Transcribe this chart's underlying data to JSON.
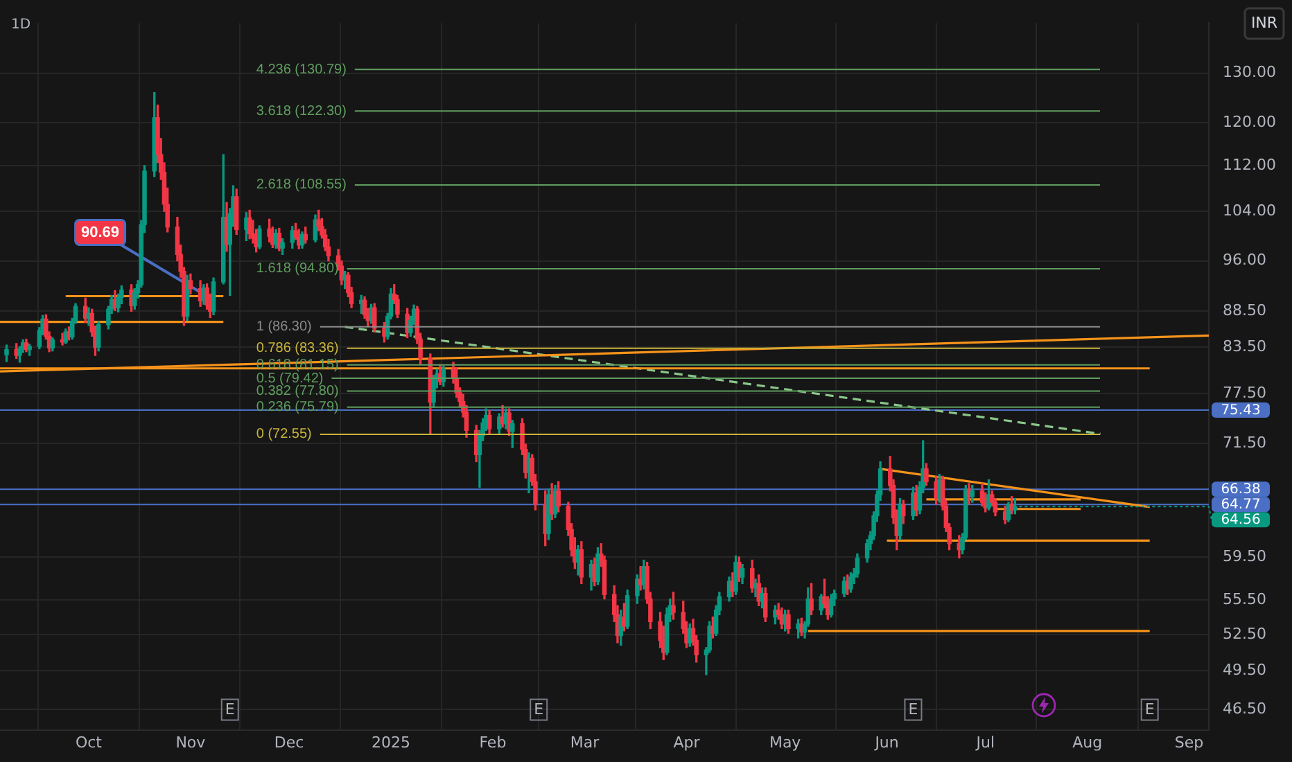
{
  "chart_data": {
    "type": "candlestick",
    "title": "1D",
    "log": "y",
    "grid": true,
    "xlim": [
      "2024-09-04",
      "2025-09-07"
    ],
    "xticks": [
      {
        "value": "2024-10-01",
        "label": "Oct"
      },
      {
        "value": "2024-11-01",
        "label": "Nov"
      },
      {
        "value": "2024-12-01",
        "label": "Dec"
      },
      {
        "value": "2025-01-01",
        "label": "2025"
      },
      {
        "value": "2025-02-01",
        "label": "Feb"
      },
      {
        "value": "2025-03-01",
        "label": "Mar"
      },
      {
        "value": "2025-04-01",
        "label": "Apr"
      },
      {
        "value": "2025-05-01",
        "label": "May"
      },
      {
        "value": "2025-06-01",
        "label": "Jun"
      },
      {
        "value": "2025-07-01",
        "label": "Jul"
      },
      {
        "value": "2025-08-01",
        "label": "Aug"
      },
      {
        "value": "2025-09-01",
        "label": "Sep"
      }
    ],
    "ylim": [
      45,
      141
    ],
    "yticks": [
      {
        "value": 130,
        "label": "130.00"
      },
      {
        "value": 120,
        "label": "120.00"
      },
      {
        "value": 112,
        "label": "112.00"
      },
      {
        "value": 104,
        "label": "104.00"
      },
      {
        "value": 96,
        "label": "96.00"
      },
      {
        "value": 88.5,
        "label": "88.50"
      },
      {
        "value": 83.5,
        "label": "83.50"
      },
      {
        "value": 77.5,
        "label": "77.50"
      },
      {
        "value": 71.5,
        "label": "71.50"
      },
      {
        "value": 59.5,
        "label": "59.50"
      },
      {
        "value": 55.5,
        "label": "55.50"
      },
      {
        "value": 52.5,
        "label": "52.50"
      },
      {
        "value": 49.5,
        "label": "49.50"
      },
      {
        "value": 46.5,
        "label": "46.50"
      }
    ],
    "x": [
      "2024-09-06",
      "2024-09-09",
      "2024-09-10",
      "2024-09-11",
      "2024-09-12",
      "2024-09-13",
      "2024-09-16",
      "2024-09-17",
      "2024-09-18",
      "2024-09-19",
      "2024-09-20",
      "2024-09-23",
      "2024-09-24",
      "2024-09-25",
      "2024-09-26",
      "2024-09-27",
      "2024-09-30",
      "2024-10-01",
      "2024-10-02",
      "2024-10-03",
      "2024-10-04",
      "2024-10-07",
      "2024-10-08",
      "2024-10-09",
      "2024-10-10",
      "2024-10-11",
      "2024-10-14",
      "2024-10-15",
      "2024-10-16",
      "2024-10-17",
      "2024-10-18",
      "2024-10-21",
      "2024-10-22",
      "2024-10-23",
      "2024-10-24",
      "2024-10-25",
      "2024-10-28",
      "2024-10-29",
      "2024-10-30",
      "2024-10-31",
      "2024-11-01",
      "2024-11-04",
      "2024-11-05",
      "2024-11-06",
      "2024-11-07",
      "2024-11-08",
      "2024-11-11",
      "2024-11-12",
      "2024-11-13",
      "2024-11-14",
      "2024-11-15",
      "2024-11-18",
      "2024-11-19",
      "2024-11-20",
      "2024-11-21",
      "2024-11-22",
      "2024-11-25",
      "2024-11-26",
      "2024-11-27",
      "2024-11-28",
      "2024-11-29",
      "2024-12-02",
      "2024-12-03",
      "2024-12-04",
      "2024-12-05",
      "2024-12-06",
      "2024-12-09",
      "2024-12-10",
      "2024-12-11",
      "2024-12-12",
      "2024-12-13",
      "2024-12-16",
      "2024-12-17",
      "2024-12-18",
      "2024-12-19",
      "2024-12-20",
      "2024-12-23",
      "2024-12-24",
      "2024-12-25",
      "2024-12-26",
      "2024-12-27",
      "2024-12-30",
      "2024-12-31",
      "2025-01-01",
      "2025-01-02",
      "2025-01-03",
      "2025-01-06",
      "2025-01-07",
      "2025-01-08",
      "2025-01-09",
      "2025-01-10",
      "2025-01-13",
      "2025-01-14",
      "2025-01-15",
      "2025-01-16",
      "2025-01-17",
      "2025-01-20",
      "2025-01-21",
      "2025-01-22",
      "2025-01-23",
      "2025-01-24",
      "2025-01-27",
      "2025-01-28",
      "2025-01-29",
      "2025-01-30",
      "2025-01-31",
      "2025-02-03",
      "2025-02-04",
      "2025-02-05",
      "2025-02-06",
      "2025-02-07",
      "2025-02-10",
      "2025-02-11",
      "2025-02-12",
      "2025-02-13",
      "2025-02-14",
      "2025-02-17",
      "2025-02-18",
      "2025-02-19",
      "2025-02-20",
      "2025-02-21",
      "2025-02-24",
      "2025-02-25",
      "2025-02-26",
      "2025-02-27",
      "2025-02-28",
      "2025-03-03",
      "2025-03-04",
      "2025-03-05",
      "2025-03-06",
      "2025-03-07",
      "2025-03-10",
      "2025-03-11",
      "2025-03-12",
      "2025-03-13",
      "2025-03-14",
      "2025-03-17",
      "2025-03-18",
      "2025-03-19",
      "2025-03-20",
      "2025-03-21",
      "2025-03-24",
      "2025-03-25",
      "2025-03-26",
      "2025-03-27",
      "2025-03-28",
      "2025-03-31",
      "2025-04-01",
      "2025-04-02",
      "2025-04-03",
      "2025-04-04",
      "2025-04-07",
      "2025-04-08",
      "2025-04-09",
      "2025-04-10",
      "2025-04-11",
      "2025-04-14",
      "2025-04-15",
      "2025-04-16",
      "2025-04-17",
      "2025-04-18",
      "2025-04-21",
      "2025-04-22",
      "2025-04-23",
      "2025-04-24",
      "2025-04-25",
      "2025-04-28",
      "2025-04-29",
      "2025-04-30",
      "2025-05-01",
      "2025-05-02",
      "2025-05-05",
      "2025-05-06",
      "2025-05-07",
      "2025-05-08",
      "2025-05-09",
      "2025-05-12",
      "2025-05-13",
      "2025-05-14",
      "2025-05-15",
      "2025-05-16",
      "2025-05-19",
      "2025-05-20",
      "2025-05-21",
      "2025-05-22",
      "2025-05-23",
      "2025-05-26",
      "2025-05-27",
      "2025-05-28",
      "2025-05-29",
      "2025-05-30",
      "2025-06-02",
      "2025-06-03",
      "2025-06-04",
      "2025-06-05",
      "2025-06-06",
      "2025-06-09",
      "2025-06-10",
      "2025-06-11",
      "2025-06-12",
      "2025-06-13",
      "2025-06-16",
      "2025-06-17",
      "2025-06-18",
      "2025-06-19",
      "2025-06-20",
      "2025-06-23",
      "2025-06-24",
      "2025-06-25",
      "2025-06-26",
      "2025-06-27",
      "2025-06-30",
      "2025-07-01",
      "2025-07-02",
      "2025-07-03",
      "2025-07-04",
      "2025-07-07",
      "2025-07-08",
      "2025-07-09",
      "2025-07-10"
    ],
    "ohlc": [
      [
        82.5,
        83.8,
        81.6,
        83.2
      ],
      [
        83.2,
        84.0,
        82.0,
        82.4
      ],
      [
        82.4,
        83.6,
        81.5,
        83.3
      ],
      [
        83.3,
        84.5,
        82.8,
        84.1
      ],
      [
        84.1,
        84.6,
        82.9,
        83.2
      ],
      [
        83.2,
        83.9,
        82.4,
        83.6
      ],
      [
        83.6,
        86.2,
        83.3,
        85.8
      ],
      [
        85.8,
        87.9,
        85.2,
        87.4
      ],
      [
        87.4,
        88.0,
        84.6,
        85.0
      ],
      [
        85.0,
        85.6,
        82.9,
        83.4
      ],
      [
        83.4,
        84.8,
        83.0,
        84.5
      ],
      [
        84.5,
        85.4,
        83.8,
        84.2
      ],
      [
        84.2,
        86.0,
        84.0,
        85.6
      ],
      [
        85.6,
        86.3,
        84.5,
        84.9
      ],
      [
        84.9,
        87.5,
        84.6,
        87.1
      ],
      [
        87.1,
        89.6,
        86.8,
        89.2
      ],
      [
        89.2,
        90.4,
        86.9,
        87.5
      ],
      [
        87.5,
        89.0,
        86.5,
        88.2
      ],
      [
        88.2,
        88.8,
        85.0,
        85.6
      ],
      [
        85.6,
        86.4,
        82.4,
        83.5
      ],
      [
        83.5,
        87.0,
        83.0,
        86.6
      ],
      [
        86.6,
        89.2,
        86.0,
        88.8
      ],
      [
        88.8,
        90.8,
        88.2,
        90.2
      ],
      [
        90.2,
        91.5,
        88.6,
        89.0
      ],
      [
        89.0,
        91.0,
        88.4,
        90.5
      ],
      [
        90.5,
        92.2,
        89.6,
        91.6
      ],
      [
        91.6,
        92.4,
        88.5,
        89.3
      ],
      [
        89.3,
        91.8,
        88.8,
        91.2
      ],
      [
        91.2,
        93.0,
        90.4,
        92.4
      ],
      [
        92.4,
        102.5,
        92.0,
        101.8
      ],
      [
        101.8,
        112.0,
        100.5,
        111.0
      ],
      [
        111.0,
        126.0,
        110.0,
        121.0
      ],
      [
        121.0,
        123.5,
        112.5,
        114.0
      ],
      [
        114.0,
        117.0,
        109.5,
        110.8
      ],
      [
        110.8,
        112.5,
        104.0,
        105.2
      ],
      [
        105.2,
        108.0,
        100.6,
        101.4
      ],
      [
        101.4,
        103.0,
        96.0,
        97.0
      ],
      [
        97.0,
        98.5,
        93.5,
        94.4
      ],
      [
        94.4,
        95.0,
        86.5,
        87.8
      ],
      [
        87.8,
        93.8,
        87.2,
        93.0
      ],
      [
        93.0,
        94.0,
        91.0,
        91.8
      ],
      [
        91.8,
        93.0,
        89.2,
        90.0
      ],
      [
        90.0,
        92.4,
        89.5,
        91.9
      ],
      [
        91.9,
        92.5,
        88.8,
        89.4
      ],
      [
        89.4,
        91.0,
        87.6,
        88.5
      ],
      [
        88.5,
        93.4,
        88.0,
        92.8
      ],
      [
        92.8,
        114.0,
        92.5,
        103.0
      ],
      [
        103.0,
        105.5,
        97.5,
        98.6
      ],
      [
        98.6,
        104.5,
        90.8,
        103.6
      ],
      [
        103.6,
        108.4,
        101.5,
        106.5
      ],
      [
        106.5,
        107.8,
        100.2,
        101.0
      ],
      [
        101.0,
        103.8,
        99.2,
        102.9
      ],
      [
        102.9,
        104.2,
        99.5,
        100.3
      ],
      [
        100.3,
        102.5,
        98.8,
        99.6
      ],
      [
        99.6,
        101.0,
        97.4,
        98.2
      ],
      [
        98.2,
        101.6,
        97.9,
        101.1
      ],
      [
        101.1,
        102.7,
        99.0,
        99.9
      ],
      [
        99.9,
        101.4,
        98.1,
        98.6
      ],
      [
        98.6,
        101.0,
        98.0,
        100.4
      ],
      [
        100.4,
        101.2,
        97.6,
        98.0
      ],
      [
        98.0,
        99.5,
        97.0,
        98.9
      ],
      [
        98.9,
        101.5,
        98.0,
        100.8
      ],
      [
        100.8,
        102.0,
        99.4,
        99.8
      ],
      [
        99.8,
        101.0,
        97.9,
        98.5
      ],
      [
        98.5,
        100.6,
        98.0,
        100.2
      ],
      [
        100.2,
        101.4,
        98.8,
        99.3
      ],
      [
        99.3,
        103.4,
        99.0,
        102.6
      ],
      [
        102.6,
        104.2,
        100.8,
        101.5
      ],
      [
        101.5,
        102.8,
        99.6,
        100.1
      ],
      [
        100.1,
        101.0,
        97.6,
        98.2
      ],
      [
        98.2,
        99.4,
        96.0,
        96.8
      ],
      [
        96.8,
        97.8,
        94.6,
        95.2
      ],
      [
        95.2,
        96.0,
        92.4,
        93.1
      ],
      [
        93.1,
        94.4,
        91.8,
        93.8
      ],
      [
        93.8,
        94.2,
        90.6,
        91.2
      ],
      [
        91.2,
        92.0,
        89.0,
        89.6
      ],
      [
        89.6,
        90.8,
        88.2,
        90.1
      ],
      [
        90.1,
        90.6,
        87.5,
        88.0
      ],
      [
        88.0,
        88.9,
        86.4,
        87.2
      ],
      [
        87.2,
        89.5,
        86.8,
        89.0
      ],
      [
        89.0,
        89.6,
        85.6,
        86.1
      ],
      [
        86.1,
        86.9,
        84.2,
        85.0
      ],
      [
        85.0,
        88.2,
        84.6,
        87.8
      ],
      [
        87.8,
        91.8,
        87.4,
        91.0
      ],
      [
        91.0,
        92.4,
        89.6,
        90.2
      ],
      [
        90.2,
        90.8,
        87.6,
        88.1
      ],
      [
        88.1,
        88.9,
        84.8,
        85.5
      ],
      [
        85.5,
        87.8,
        85.0,
        87.2
      ],
      [
        87.2,
        89.4,
        86.6,
        88.8
      ],
      [
        88.8,
        89.2,
        84.0,
        84.6
      ],
      [
        84.6,
        85.4,
        81.2,
        82.0
      ],
      [
        82.0,
        82.6,
        72.6,
        76.4
      ],
      [
        76.4,
        79.8,
        75.8,
        79.2
      ],
      [
        79.2,
        80.6,
        78.2,
        80.0
      ],
      [
        80.0,
        81.2,
        78.6,
        79.0
      ],
      [
        79.0,
        81.0,
        78.4,
        80.6
      ],
      [
        80.6,
        81.5,
        78.8,
        79.4
      ],
      [
        79.4,
        80.8,
        77.0,
        77.6
      ],
      [
        77.6,
        78.2,
        75.8,
        76.5
      ],
      [
        76.5,
        77.4,
        74.6,
        75.2
      ],
      [
        75.2,
        76.0,
        72.2,
        73.0
      ],
      [
        73.0,
        73.6,
        69.4,
        70.2
      ],
      [
        70.2,
        73.0,
        66.6,
        72.4
      ],
      [
        72.4,
        74.4,
        71.8,
        73.9
      ],
      [
        73.9,
        75.6,
        73.0,
        74.8
      ],
      [
        74.8,
        75.4,
        72.6,
        73.2
      ],
      [
        73.2,
        75.0,
        72.6,
        74.6
      ],
      [
        74.6,
        76.0,
        73.4,
        73.8
      ],
      [
        73.8,
        75.6,
        73.2,
        75.1
      ],
      [
        75.1,
        75.6,
        72.4,
        72.9
      ],
      [
        72.9,
        74.2,
        71.0,
        73.8
      ],
      [
        73.8,
        74.4,
        70.2,
        70.8
      ],
      [
        70.8,
        71.4,
        67.6,
        68.2
      ],
      [
        68.2,
        70.4,
        66.0,
        69.8
      ],
      [
        69.8,
        70.2,
        66.8,
        67.2
      ],
      [
        67.2,
        68.0,
        64.2,
        64.8
      ],
      [
        64.8,
        66.2,
        60.6,
        61.8
      ],
      [
        61.8,
        66.4,
        61.2,
        65.8
      ],
      [
        65.8,
        67.0,
        63.2,
        63.8
      ],
      [
        63.8,
        66.8,
        63.4,
        66.2
      ],
      [
        66.2,
        67.2,
        64.0,
        64.6
      ],
      [
        64.6,
        65.0,
        61.6,
        62.2
      ],
      [
        62.2,
        62.8,
        59.6,
        60.2
      ],
      [
        60.2,
        61.4,
        58.4,
        59.0
      ],
      [
        59.0,
        60.6,
        57.8,
        60.2
      ],
      [
        60.2,
        61.0,
        57.0,
        57.6
      ],
      [
        57.6,
        59.2,
        56.4,
        58.8
      ],
      [
        58.8,
        59.4,
        56.8,
        57.2
      ],
      [
        57.2,
        60.4,
        56.9,
        59.8
      ],
      [
        59.8,
        60.8,
        58.6,
        59.2
      ],
      [
        59.2,
        59.6,
        55.6,
        56.0
      ],
      [
        56.0,
        56.8,
        53.6,
        54.2
      ],
      [
        54.2,
        55.0,
        51.8,
        52.4
      ],
      [
        52.4,
        54.6,
        51.6,
        54.0
      ],
      [
        54.0,
        55.2,
        52.8,
        53.2
      ],
      [
        53.2,
        56.4,
        53.0,
        55.9
      ],
      [
        55.9,
        57.8,
        55.2,
        57.4
      ],
      [
        57.4,
        58.6,
        56.4,
        56.9
      ],
      [
        56.9,
        59.2,
        56.5,
        58.6
      ],
      [
        58.6,
        59.0,
        55.2,
        55.6
      ],
      [
        55.6,
        56.2,
        53.0,
        53.6
      ],
      [
        53.6,
        54.4,
        51.4,
        52.0
      ],
      [
        52.0,
        53.2,
        50.4,
        51.0
      ],
      [
        51.0,
        54.8,
        50.8,
        54.2
      ],
      [
        54.2,
        55.6,
        53.6,
        55.0
      ],
      [
        55.0,
        56.2,
        53.8,
        54.4
      ],
      [
        54.4,
        55.4,
        52.6,
        53.0
      ],
      [
        53.0,
        53.6,
        51.4,
        51.8
      ],
      [
        51.8,
        53.4,
        51.5,
        53.0
      ],
      [
        53.0,
        53.8,
        51.6,
        52.0
      ],
      [
        52.0,
        52.4,
        50.2,
        50.8
      ],
      [
        50.8,
        51.4,
        49.2,
        51.2
      ],
      [
        51.2,
        53.6,
        51.0,
        53.2
      ],
      [
        53.2,
        54.0,
        52.2,
        52.6
      ],
      [
        52.6,
        55.0,
        52.4,
        54.6
      ],
      [
        54.6,
        56.2,
        54.2,
        55.8
      ],
      [
        55.8,
        57.6,
        55.4,
        57.2
      ],
      [
        57.2,
        58.0,
        55.8,
        56.3
      ],
      [
        56.3,
        59.6,
        56.0,
        59.0
      ],
      [
        59.0,
        59.5,
        57.2,
        57.6
      ],
      [
        57.6,
        58.8,
        57.0,
        58.4
      ],
      [
        58.4,
        59.2,
        56.2,
        56.6
      ],
      [
        56.6,
        57.4,
        55.8,
        57.0
      ],
      [
        57.0,
        57.8,
        55.0,
        55.4
      ],
      [
        55.4,
        56.6,
        54.8,
        56.1
      ],
      [
        56.1,
        56.6,
        53.6,
        54.0
      ],
      [
        54.0,
        55.0,
        53.4,
        54.6
      ],
      [
        54.6,
        55.2,
        53.8,
        54.2
      ],
      [
        54.2,
        54.8,
        53.0,
        53.4
      ],
      [
        53.4,
        54.6,
        52.8,
        54.2
      ],
      [
        54.2,
        54.6,
        52.6,
        53.0
      ],
      [
        53.0,
        53.8,
        52.2,
        53.4
      ],
      [
        53.4,
        53.9,
        52.4,
        52.7
      ],
      [
        52.7,
        53.6,
        52.2,
        53.4
      ],
      [
        53.4,
        56.6,
        53.2,
        55.6
      ],
      [
        55.6,
        57.0,
        54.2,
        54.6
      ],
      [
        54.6,
        56.0,
        54.2,
        55.8
      ],
      [
        55.8,
        57.4,
        54.8,
        55.2
      ],
      [
        55.2,
        55.8,
        53.8,
        54.2
      ],
      [
        54.2,
        56.0,
        54.0,
        55.6
      ],
      [
        55.6,
        56.4,
        55.0,
        56.1
      ],
      [
        56.1,
        57.6,
        55.8,
        57.2
      ],
      [
        57.2,
        57.8,
        56.0,
        56.5
      ],
      [
        56.5,
        58.0,
        56.2,
        57.6
      ],
      [
        57.6,
        58.4,
        57.0,
        57.9
      ],
      [
        57.9,
        59.8,
        57.6,
        59.4
      ],
      [
        59.4,
        61.2,
        59.0,
        60.8
      ],
      [
        60.8,
        62.0,
        60.2,
        61.6
      ],
      [
        61.6,
        64.0,
        61.2,
        63.6
      ],
      [
        63.6,
        66.2,
        63.0,
        65.8
      ],
      [
        65.8,
        69.4,
        65.2,
        68.6
      ],
      [
        68.6,
        70.0,
        66.2,
        66.8
      ],
      [
        66.8,
        67.4,
        62.8,
        63.4
      ],
      [
        63.4,
        64.2,
        60.2,
        61.6
      ],
      [
        61.6,
        65.4,
        61.2,
        64.8
      ],
      [
        64.8,
        65.2,
        62.8,
        63.6
      ],
      [
        63.6,
        66.6,
        63.2,
        66.0
      ],
      [
        66.0,
        66.8,
        63.6,
        64.2
      ],
      [
        64.2,
        67.2,
        63.8,
        66.6
      ],
      [
        66.6,
        71.8,
        66.0,
        68.6
      ],
      [
        68.6,
        69.2,
        66.8,
        67.2
      ],
      [
        67.2,
        67.8,
        64.8,
        65.4
      ],
      [
        65.4,
        68.0,
        65.0,
        67.4
      ],
      [
        67.4,
        67.8,
        64.2,
        64.6
      ],
      [
        64.6,
        65.2,
        62.0,
        62.4
      ],
      [
        62.4,
        62.8,
        60.2,
        60.8
      ],
      [
        60.8,
        61.6,
        59.4,
        60.2
      ],
      [
        60.2,
        61.8,
        59.8,
        61.4
      ],
      [
        61.4,
        66.8,
        61.2,
        66.4
      ],
      [
        66.4,
        67.0,
        64.8,
        65.6
      ],
      [
        65.6,
        66.8,
        65.0,
        66.2
      ],
      [
        66.2,
        67.0,
        64.6,
        65.0
      ],
      [
        65.0,
        66.0,
        64.0,
        64.4
      ],
      [
        64.4,
        67.4,
        64.2,
        65.8
      ],
      [
        65.8,
        66.2,
        64.6,
        65.0
      ],
      [
        65.0,
        65.4,
        63.6,
        64.0
      ],
      [
        64.0,
        64.6,
        62.8,
        63.2
      ],
      [
        63.2,
        65.0,
        63.0,
        64.8
      ],
      [
        64.8,
        65.6,
        63.8,
        64.2
      ],
      [
        64.2,
        65.4,
        63.8,
        64.56
      ]
    ],
    "series": [
      {
        "type": "line",
        "x": [
          "2024-09-24",
          "2024-11-11"
        ],
        "values": [
          90.69,
          90.69
        ],
        "color": "#f7931a"
      },
      {
        "type": "line",
        "x": [
          "2024-09-04",
          "2024-11-11"
        ],
        "values": [
          87,
          87
        ],
        "color": "#f7931a"
      },
      {
        "type": "line",
        "x": [
          "2024-09-04",
          "2025-09-07"
        ],
        "values": [
          80.3,
          85.1
        ],
        "color": "#f7931a"
      },
      {
        "type": "line",
        "x": [
          "2024-09-04",
          "2025-08-20"
        ],
        "values": [
          80.7,
          80.7
        ],
        "color": "#f7931a"
      },
      {
        "type": "line",
        "x": [
          "2024-12-18",
          "2025-08-05"
        ],
        "values": [
          86.3,
          72.6
        ],
        "color": "#8bc78b",
        "line_style": "dashed"
      },
      {
        "type": "line",
        "x": [
          "2025-05-30",
          "2025-08-20"
        ],
        "values": [
          68.6,
          64.5
        ],
        "color": "#f7931a"
      },
      {
        "type": "line",
        "x": [
          "2025-06-13",
          "2025-07-30"
        ],
        "values": [
          65.3,
          65.3
        ],
        "color": "#f7931a"
      },
      {
        "type": "line",
        "x": [
          "2025-07-04",
          "2025-07-30"
        ],
        "values": [
          64.3,
          64.3
        ],
        "color": "#f7931a"
      },
      {
        "type": "line",
        "x": [
          "2025-06-01",
          "2025-08-20"
        ],
        "values": [
          61.1,
          61.1
        ],
        "color": "#f7931a"
      },
      {
        "type": "line",
        "x": [
          "2025-05-08",
          "2025-08-20"
        ],
        "values": [
          52.8,
          52.8
        ],
        "color": "#f7931a"
      },
      {
        "type": "line",
        "name": "75.43",
        "x": [
          "2024-09-04",
          "2025-09-07"
        ],
        "values": [
          75.43,
          75.43
        ],
        "color": "#4a6fc4"
      },
      {
        "type": "line",
        "name": "66.38",
        "x": [
          "2024-09-04",
          "2025-09-07"
        ],
        "values": [
          66.38,
          66.38
        ],
        "color": "#4a6fc4"
      },
      {
        "type": "line",
        "name": "64.77",
        "x": [
          "2024-09-04",
          "2025-09-07"
        ],
        "values": [
          64.77,
          64.77
        ],
        "color": "#4a6fc4"
      }
    ],
    "ref_lines": [
      {
        "axis": "y",
        "value": 130.79,
        "label": "4.236 (130.79)",
        "color": "#5f9e5f"
      },
      {
        "axis": "y",
        "value": 122.3,
        "label": "3.618 (122.30)",
        "color": "#5f9e5f"
      },
      {
        "axis": "y",
        "value": 108.55,
        "label": "2.618 (108.55)",
        "color": "#5f9e5f"
      },
      {
        "axis": "y",
        "value": 94.8,
        "label": "1.618 (94.80)",
        "color": "#5f9e5f"
      },
      {
        "axis": "y",
        "value": 86.3,
        "label": "1 (86.30)",
        "color": "#8a8a8a"
      },
      {
        "axis": "y",
        "value": 83.36,
        "label": "0.786 (83.36)",
        "color": "#c9b43a"
      },
      {
        "axis": "y",
        "value": 81.15,
        "label": "0.618 (81.15)",
        "color": "#5f9e5f"
      },
      {
        "axis": "y",
        "value": 79.42,
        "label": "0.5 (79.42)",
        "color": "#5f9e5f"
      },
      {
        "axis": "y",
        "value": 77.8,
        "label": "0.382 (77.80)",
        "color": "#5f9e5f"
      },
      {
        "axis": "y",
        "value": 75.79,
        "label": "0.236 (75.79)",
        "color": "#5f9e5f"
      },
      {
        "axis": "y",
        "value": 72.55,
        "label": "0 (72.55)",
        "color": "#c9b43a"
      }
    ],
    "annotations": [
      "INR",
      {
        "text": "90.69",
        "x": "2024-11-06",
        "y": 90.69
      },
      {
        "text": "64.56",
        "x": "2025-07-10",
        "y": 64.56
      },
      {
        "text": "E",
        "x": "2024-11-13"
      },
      {
        "text": "E",
        "x": "2025-02-15"
      },
      {
        "text": "E",
        "x": "2025-06-09"
      },
      {
        "text": "E",
        "x": "2025-08-20"
      }
    ]
  }
}
